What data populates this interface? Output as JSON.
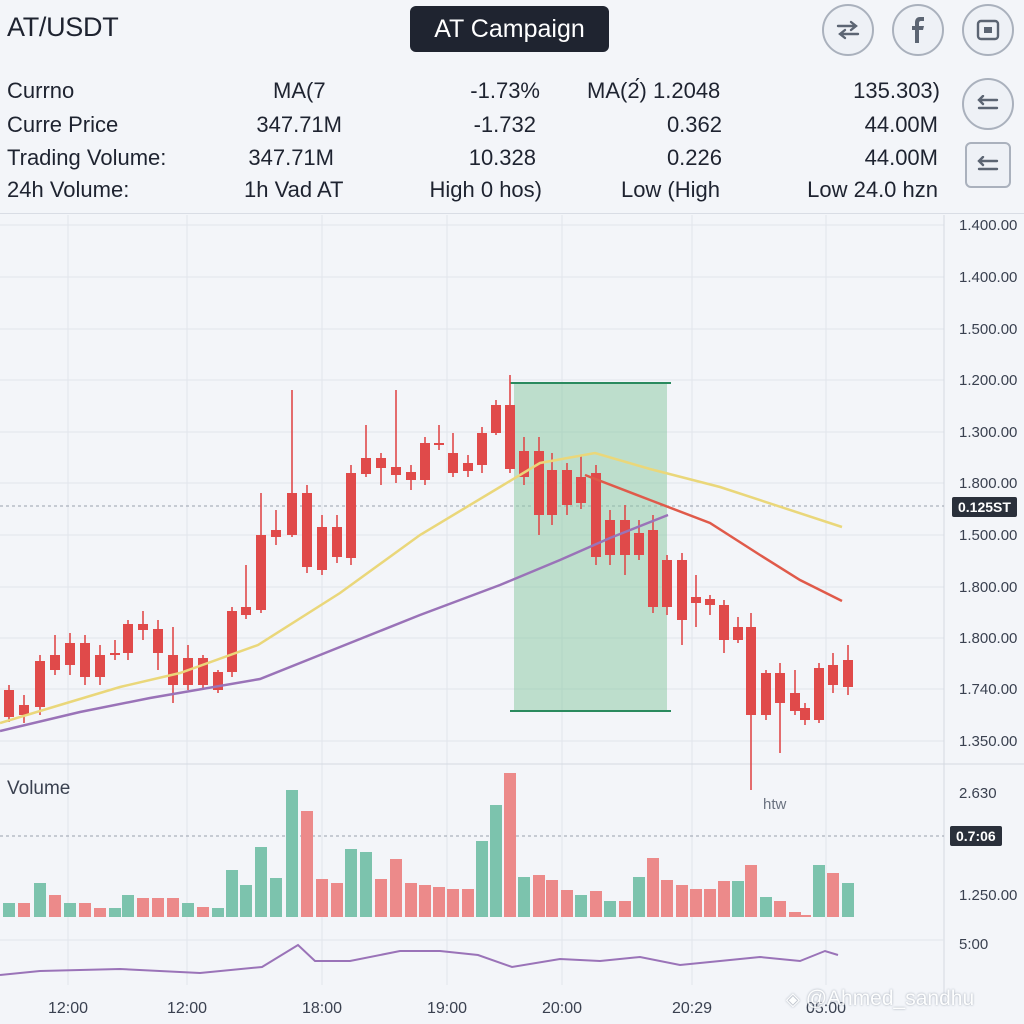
{
  "header": {
    "pair": "AT/USDT",
    "campaign_label": "AT Campaign",
    "icons": {
      "swap": "swap-arrows-icon",
      "facebook": "facebook-icon",
      "square": "square-frame-icon",
      "back1": "arrow-left-right-icon",
      "back2": "arrow-left-right-icon"
    },
    "rows": [
      [
        "Currno",
        "MA(7",
        "-1.73%",
        "MA(2́) 1.2048",
        "135.303)"
      ],
      [
        "Curre Price",
        "347.71M",
        "-1.732",
        "0.362",
        "44.00M"
      ],
      [
        "Trading Volume:",
        "347.71M",
        "10.328",
        "0.226",
        "44.00M"
      ],
      [
        "24h Volume:",
        "1h Vad AT",
        "High 0 hos)",
        "Low (High",
        "Low 24.0 hzn"
      ]
    ]
  },
  "chart": {
    "price_ticks": [
      "1.400.00",
      "1.400.00",
      "1.500.00",
      "1.200.00",
      "1.300.00",
      "1.800.00",
      "1.500.00",
      "1.800.00",
      "1.800.00",
      "1.740.00",
      "1.350.00"
    ],
    "current_price_tag": "0.125ST",
    "volume_label": "Volume",
    "volume_ticks": [
      "2.630",
      "1.250.00",
      "5:00"
    ],
    "volume_tag": "0.7:06",
    "htw_label": "htw",
    "time_ticks": [
      "12:00",
      "12:00",
      "18:00",
      "19:00",
      "20:00",
      "20:29",
      "05:00"
    ],
    "watermark": "@Ahmed_sandhu",
    "colors": {
      "up": "#2a8a5e",
      "down": "#e04a4a",
      "ma_yellow": "#ead77a",
      "ma_purple": "#9a73b8",
      "ma_red": "#e05a4a",
      "box": "#8fcaa8"
    }
  }
}
